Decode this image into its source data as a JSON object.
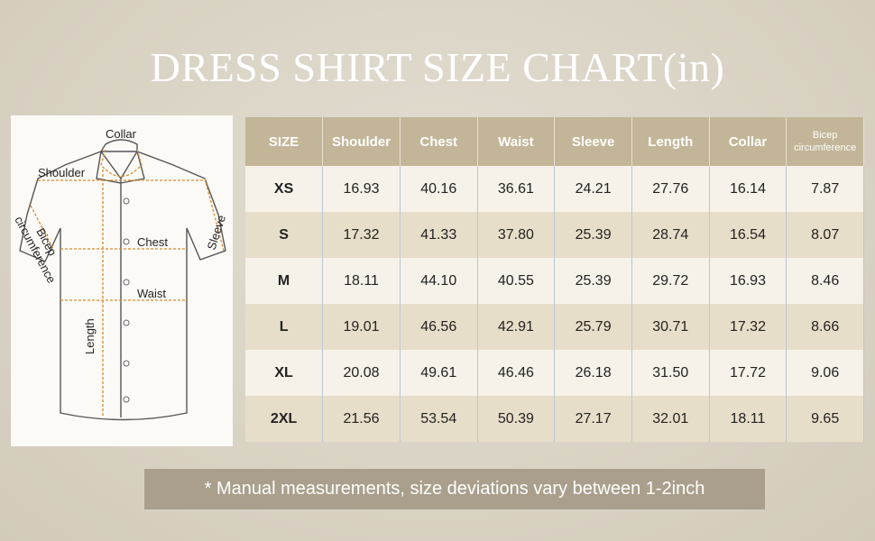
{
  "header": {
    "title": "DRESS SHIRT SIZE CHART(in)"
  },
  "diagram": {
    "labels": {
      "collar": "Collar",
      "shoulder": "Shoulder",
      "bicep": [
        "Bicep",
        "circumference"
      ],
      "chest": "Chest",
      "sleeve": "Sleeve",
      "waist": "Waist",
      "length": "Length"
    }
  },
  "table": {
    "columns": [
      "SIZE",
      "Shoulder",
      "Chest",
      "Waist",
      "Sleeve",
      "Length",
      "Collar",
      "Bicep circumference"
    ],
    "rows": [
      [
        "XS",
        "16.93",
        "40.16",
        "36.61",
        "24.21",
        "27.76",
        "16.14",
        "7.87"
      ],
      [
        "S",
        "17.32",
        "41.33",
        "37.80",
        "25.39",
        "28.74",
        "16.54",
        "8.07"
      ],
      [
        "M",
        "18.11",
        "44.10",
        "40.55",
        "25.39",
        "29.72",
        "16.93",
        "8.46"
      ],
      [
        "L",
        "19.01",
        "46.56",
        "42.91",
        "25.79",
        "30.71",
        "17.32",
        "8.66"
      ],
      [
        "XL",
        "20.08",
        "49.61",
        "46.46",
        "26.18",
        "31.50",
        "17.72",
        "9.06"
      ],
      [
        "2XL",
        "21.56",
        "53.54",
        "50.39",
        "27.17",
        "32.01",
        "18.11",
        "9.65"
      ]
    ]
  },
  "footnote": "* Manual measurements, size deviations vary between 1-2inch"
}
